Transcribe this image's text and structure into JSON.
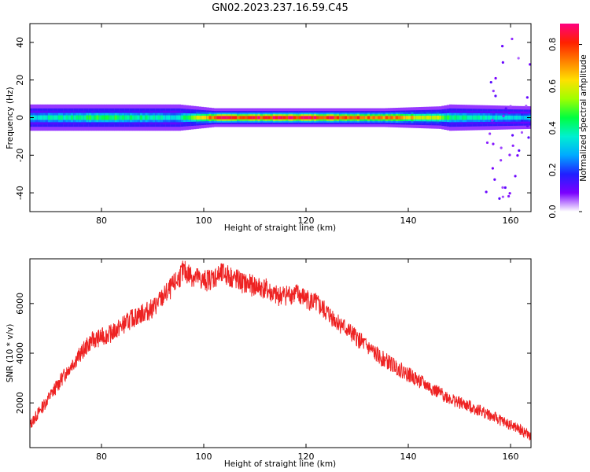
{
  "figure": {
    "title": "GN02.2023.237.16.59.C45"
  },
  "chart_data": [
    {
      "type": "heatmap",
      "xlabel": "Height of straight line (km)",
      "ylabel": "Frequency (Hz)",
      "xlim": [
        66,
        164
      ],
      "ylim": [
        -50,
        50
      ],
      "x_ticks": [
        80,
        100,
        120,
        140,
        160
      ],
      "y_ticks": [
        -40,
        -20,
        0,
        20,
        40
      ],
      "colorbar": {
        "label": "Normalized spectral amplitude",
        "range": [
          0,
          0.9
        ],
        "ticks": [
          "0.0",
          "0.2",
          "0.4",
          "0.6",
          "0.8"
        ],
        "colors": [
          "#ffffff",
          "#7a00ff",
          "#2020ff",
          "#00aaff",
          "#00f0d0",
          "#00ff40",
          "#a0ff00",
          "#ffe000",
          "#ff8000",
          "#ff2000",
          "#ff0080"
        ]
      },
      "band": {
        "center_hz": 0,
        "description_points": [
          {
            "x": 66,
            "amp": 0.35,
            "half_width_hz": 3.5
          },
          {
            "x": 80,
            "amp": 0.45,
            "half_width_hz": 3.5
          },
          {
            "x": 95,
            "amp": 0.35,
            "half_width_hz": 3.5
          },
          {
            "x": 102,
            "amp": 0.8,
            "half_width_hz": 2.5
          },
          {
            "x": 120,
            "amp": 0.85,
            "half_width_hz": 2.5
          },
          {
            "x": 135,
            "amp": 0.75,
            "half_width_hz": 2.5
          },
          {
            "x": 146,
            "amp": 0.55,
            "half_width_hz": 3.0
          },
          {
            "x": 148,
            "amp": 0.4,
            "half_width_hz": 3.5
          },
          {
            "x": 164,
            "amp": 0.3,
            "half_width_hz": 3.0
          }
        ]
      }
    },
    {
      "type": "line",
      "xlabel": "Height of straight line (km)",
      "ylabel": "SNR (10 * v/v)",
      "xlim": [
        66,
        164
      ],
      "ylim": [
        200,
        7800
      ],
      "x_ticks": [
        80,
        100,
        120,
        140,
        160
      ],
      "y_ticks": [
        2000,
        4000,
        6000
      ],
      "series": [
        {
          "color": "#ee2222",
          "trend": [
            [
              66,
              1100
            ],
            [
              70,
              2300
            ],
            [
              74,
              3500
            ],
            [
              78,
              4500
            ],
            [
              82,
              4800
            ],
            [
              86,
              5400
            ],
            [
              90,
              5800
            ],
            [
              94,
              6700
            ],
            [
              96,
              7300
            ],
            [
              100,
              6900
            ],
            [
              104,
              7200
            ],
            [
              108,
              6800
            ],
            [
              112,
              6600
            ],
            [
              114,
              6300
            ],
            [
              118,
              6400
            ],
            [
              122,
              6000
            ],
            [
              126,
              5300
            ],
            [
              130,
              4600
            ],
            [
              134,
              3900
            ],
            [
              138,
              3400
            ],
            [
              142,
              2900
            ],
            [
              146,
              2400
            ],
            [
              150,
              2000
            ],
            [
              154,
              1700
            ],
            [
              158,
              1300
            ],
            [
              162,
              900
            ],
            [
              164,
              650
            ]
          ]
        }
      ]
    }
  ]
}
